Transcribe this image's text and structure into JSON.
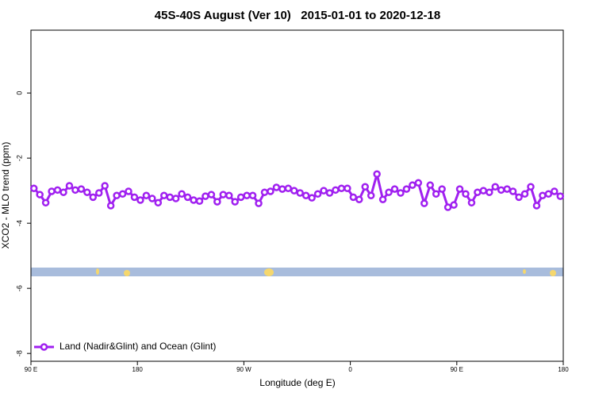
{
  "chart_data": {
    "type": "line",
    "title": "45S-40S August (Ver 10)   2015-01-01 to 2020-12-18",
    "xlabel": "Longitude (deg E)",
    "ylabel": "XCO2 - MLO trend (ppm)",
    "xlim": [
      90,
      540
    ],
    "ylim": [
      -8.24,
      1.93
    ],
    "xticks": [
      {
        "value": 90,
        "label": "90 E"
      },
      180,
      {
        "value": 270,
        "label": "90 W"
      },
      {
        "value": 360,
        "label": "0"
      },
      {
        "value": 450,
        "label": "90 E"
      },
      {
        "value": 540,
        "label": "180"
      }
    ],
    "yticks": [
      0,
      -2,
      -4,
      -6,
      -8
    ],
    "legend": "bottom-left",
    "x": [
      92.5,
      97.5,
      102.5,
      107.5,
      112.5,
      117.5,
      122.5,
      127.5,
      132.5,
      137.5,
      142.5,
      147.5,
      152.5,
      157.5,
      162.5,
      167.5,
      172.5,
      177.5,
      182.5,
      187.5,
      192.5,
      197.5,
      202.5,
      207.5,
      212.5,
      217.5,
      222.5,
      227.5,
      232.5,
      237.5,
      242.5,
      247.5,
      252.5,
      257.5,
      262.5,
      267.5,
      272.5,
      277.5,
      282.5,
      287.5,
      292.5,
      297.5,
      302.5,
      307.5,
      312.5,
      317.5,
      322.5,
      327.5,
      332.5,
      337.5,
      342.5,
      347.5,
      352.5,
      357.5,
      362.5,
      367.5,
      372.5,
      377.5,
      382.5,
      387.5,
      392.5,
      397.5,
      402.5,
      407.5,
      412.5,
      417.5,
      422.5,
      427.5,
      432.5,
      437.5,
      442.5,
      447.5,
      452.5,
      457.5,
      462.5,
      467.5,
      472.5,
      477.5,
      482.5,
      487.5,
      492.5,
      497.5,
      502.5,
      507.5,
      512.5,
      517.5,
      522.5,
      527.5,
      532.5,
      537.5
    ],
    "series": [
      {
        "name": "Land (Nadir&Glint) and Ocean (Glint)",
        "color": "#a020f0",
        "values": [
          -2.93,
          -3.12,
          -3.37,
          -3.02,
          -2.98,
          -3.05,
          -2.85,
          -2.98,
          -2.95,
          -3.05,
          -3.2,
          -3.07,
          -2.85,
          -3.46,
          -3.15,
          -3.1,
          -3.02,
          -3.2,
          -3.29,
          -3.15,
          -3.24,
          -3.37,
          -3.15,
          -3.2,
          -3.24,
          -3.1,
          -3.2,
          -3.29,
          -3.32,
          -3.17,
          -3.12,
          -3.34,
          -3.12,
          -3.15,
          -3.34,
          -3.2,
          -3.15,
          -3.15,
          -3.39,
          -3.05,
          -3.02,
          -2.9,
          -2.95,
          -2.93,
          -3.0,
          -3.07,
          -3.15,
          -3.22,
          -3.1,
          -3.0,
          -3.07,
          -2.98,
          -2.93,
          -2.93,
          -3.2,
          -3.27,
          -2.88,
          -3.15,
          -2.49,
          -3.27,
          -3.05,
          -2.95,
          -3.07,
          -2.95,
          -2.83,
          -2.76,
          -3.39,
          -2.83,
          -3.1,
          -2.95,
          -3.51,
          -3.44,
          -2.95,
          -3.1,
          -3.37,
          -3.05,
          -3.0,
          -3.05,
          -2.88,
          -2.98,
          -2.95,
          -3.02,
          -3.2,
          -3.1,
          -2.88,
          -3.46,
          -3.15,
          -3.1,
          -3.02,
          -3.17
        ]
      }
    ]
  }
}
